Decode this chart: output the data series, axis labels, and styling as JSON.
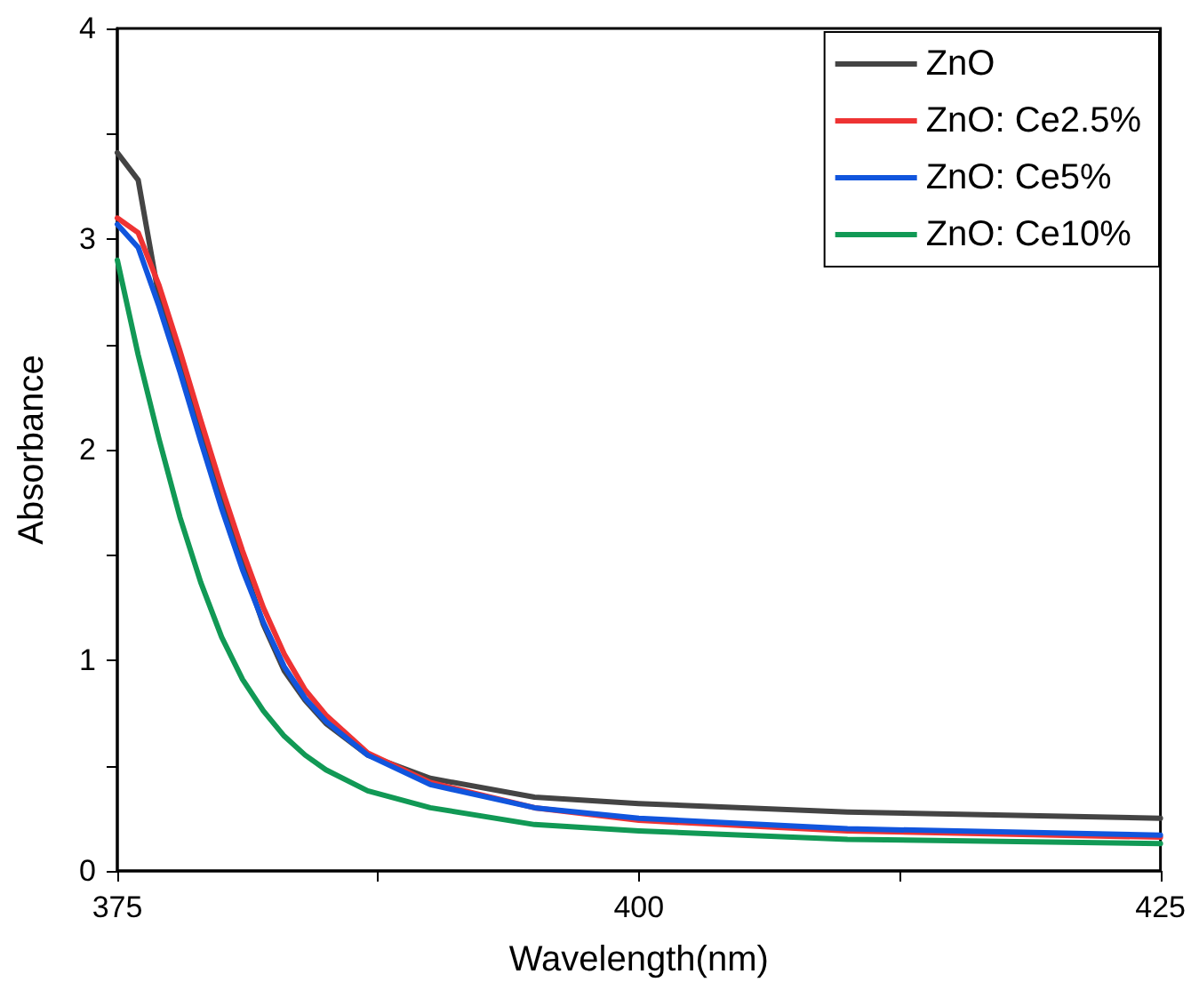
{
  "chart_data": {
    "type": "line",
    "xlabel": "Wavelength(nm)",
    "ylabel": "Absorbance",
    "x": [
      375,
      376,
      377,
      378,
      379,
      380,
      381,
      382,
      383,
      384,
      385,
      387,
      390,
      395,
      400,
      410,
      425
    ],
    "series": [
      {
        "name": "ZnO",
        "color": "#444444",
        "values": [
          3.41,
          3.28,
          2.72,
          2.43,
          2.11,
          1.78,
          1.46,
          1.17,
          0.95,
          0.81,
          0.7,
          0.55,
          0.44,
          0.35,
          0.32,
          0.28,
          0.25
        ]
      },
      {
        "name": "ZnO: Ce2.5%",
        "color": "#ee3333",
        "values": [
          3.1,
          3.03,
          2.78,
          2.47,
          2.14,
          1.82,
          1.52,
          1.25,
          1.03,
          0.86,
          0.74,
          0.56,
          0.42,
          0.3,
          0.24,
          0.19,
          0.16
        ]
      },
      {
        "name": "ZnO: Ce5%",
        "color": "#1155dd",
        "values": [
          3.07,
          2.96,
          2.68,
          2.37,
          2.04,
          1.72,
          1.43,
          1.18,
          0.97,
          0.82,
          0.71,
          0.55,
          0.41,
          0.3,
          0.25,
          0.2,
          0.17
        ]
      },
      {
        "name": "ZnO: Ce10%",
        "color": "#119955",
        "values": [
          2.9,
          2.45,
          2.05,
          1.68,
          1.37,
          1.11,
          0.91,
          0.76,
          0.64,
          0.55,
          0.48,
          0.38,
          0.3,
          0.22,
          0.19,
          0.15,
          0.13
        ]
      }
    ],
    "xlim": [
      375,
      425
    ],
    "xticks": [
      375,
      {
        "value": 387.5,
        "label": null
      },
      400,
      {
        "value": 412.5,
        "label": null
      },
      425
    ],
    "ylim": [
      0,
      4
    ],
    "yticks": [
      0,
      {
        "value": 0.5,
        "label": null
      },
      1,
      {
        "value": 1.5,
        "label": null
      },
      2,
      {
        "value": 2.5,
        "label": null
      },
      3,
      {
        "value": 3.5,
        "label": null
      },
      4
    ],
    "grid": false,
    "legend": "top right",
    "marker": "none",
    "line_style": "solid"
  }
}
